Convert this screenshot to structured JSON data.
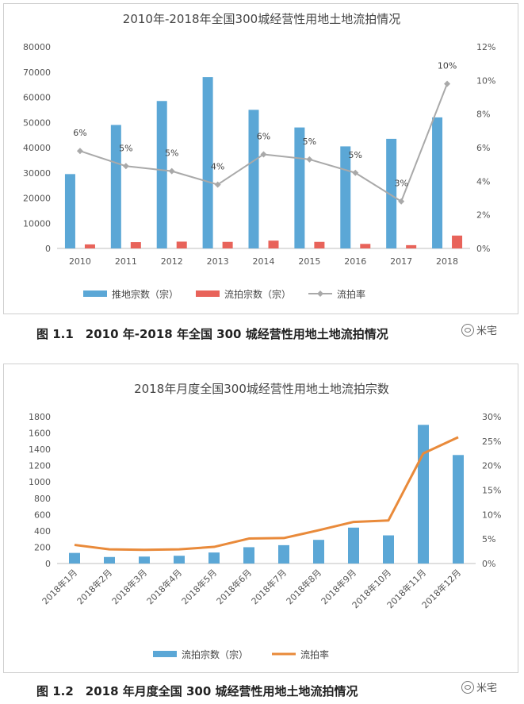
{
  "figures": [
    {
      "caption": "图 1.1　2010 年-2018 年全国 300 城经营性用地土地流拍情况",
      "watermark": "米宅"
    },
    {
      "caption": "图 1.2　2018 年月度全国 300 城经营性用地土地流拍情况",
      "watermark": "米宅"
    }
  ],
  "chart_data": [
    {
      "type": "bar",
      "title": "2010年-2018年全国300城经营性用地土地流拍情况",
      "categories": [
        "2010",
        "2011",
        "2012",
        "2013",
        "2014",
        "2015",
        "2016",
        "2017",
        "2018"
      ],
      "y_ticks": [
        "0",
        "10000",
        "20000",
        "30000",
        "40000",
        "50000",
        "60000",
        "70000",
        "80000"
      ],
      "y2_ticks": [
        "0%",
        "2%",
        "4%",
        "6%",
        "8%",
        "10%",
        "12%"
      ],
      "ylim": [
        0,
        80000
      ],
      "y2lim": [
        0,
        12
      ],
      "series": [
        {
          "name": "推地宗数（宗）",
          "kind": "bar",
          "axis": "left",
          "color": "#5BA7D6",
          "values": [
            29500,
            49000,
            58500,
            68000,
            55000,
            48000,
            40500,
            43500,
            52000
          ]
        },
        {
          "name": "流拍宗数（宗）",
          "kind": "bar",
          "axis": "left",
          "color": "#E8635A",
          "values": [
            1600,
            2500,
            2700,
            2600,
            3100,
            2600,
            1800,
            1300,
            5100
          ]
        },
        {
          "name": "流拍率",
          "kind": "line",
          "axis": "right",
          "color": "#A9A9A9",
          "values": [
            5.8,
            4.9,
            4.6,
            3.8,
            5.6,
            5.3,
            4.5,
            2.8,
            9.8
          ],
          "data_labels": [
            "6%",
            "5%",
            "5%",
            "4%",
            "6%",
            "5%",
            "5%",
            "3%",
            "10%"
          ]
        }
      ],
      "legend": "bottom",
      "grid": false
    },
    {
      "type": "bar",
      "title": "2018年月度全国300城经营性用地土地流拍宗数",
      "categories": [
        "2018年1月",
        "2018年2月",
        "2018年3月",
        "2018年4月",
        "2018年5月",
        "2018年6月",
        "2018年7月",
        "2018年8月",
        "2018年9月",
        "2018年10月",
        "2018年11月",
        "2018年12月"
      ],
      "y_ticks": [
        "0",
        "200",
        "400",
        "600",
        "800",
        "1000",
        "1200",
        "1400",
        "1600",
        "1800"
      ],
      "y2_ticks": [
        "0%",
        "5%",
        "10%",
        "15%",
        "20%",
        "25%",
        "30%"
      ],
      "ylim": [
        0,
        1800
      ],
      "y2lim": [
        0,
        30
      ],
      "series": [
        {
          "name": "流拍宗数（宗）",
          "kind": "bar",
          "axis": "left",
          "color": "#5BA7D6",
          "values": [
            130,
            80,
            85,
            95,
            135,
            200,
            225,
            290,
            440,
            345,
            1700,
            1330
          ]
        },
        {
          "name": "流拍率",
          "kind": "line",
          "axis": "right",
          "color": "#E98A3A",
          "values": [
            3.8,
            2.9,
            2.8,
            2.9,
            3.4,
            5.1,
            5.2,
            6.8,
            8.5,
            8.8,
            22.5,
            25.8
          ]
        }
      ],
      "legend": "bottom",
      "grid": false
    }
  ]
}
